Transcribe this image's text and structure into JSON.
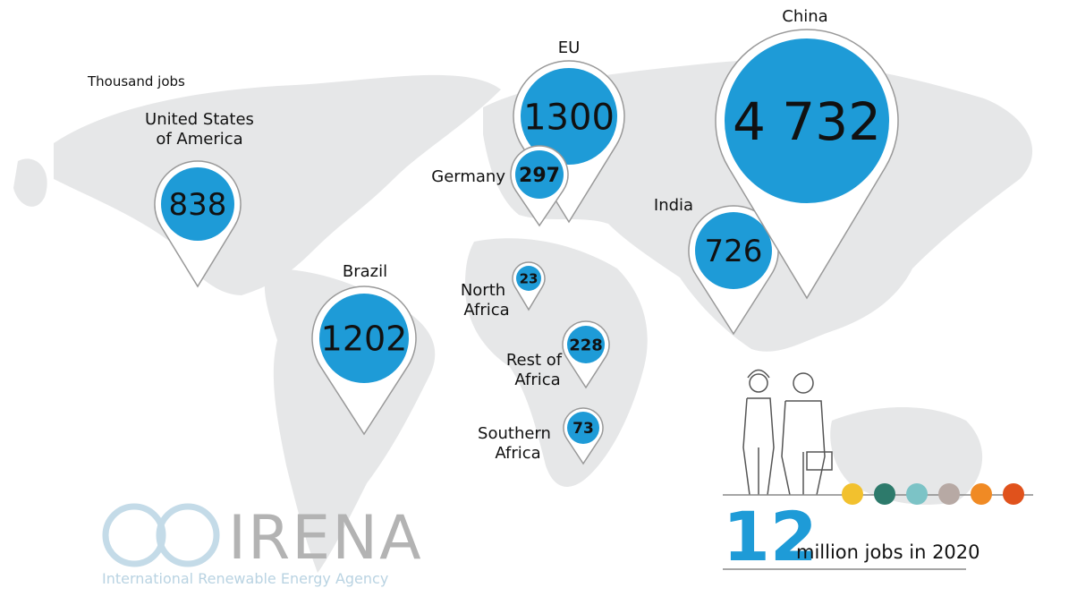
{
  "unit_label": "Thousand jobs",
  "regions": [
    {
      "name": [
        "United States",
        "of America"
      ],
      "value": "838"
    },
    {
      "name": [
        "Brazil"
      ],
      "value": "1202"
    },
    {
      "name": [
        "EU"
      ],
      "value": "1300"
    },
    {
      "name": [
        "Germany"
      ],
      "value": "297"
    },
    {
      "name": [
        "North",
        "Africa"
      ],
      "value": "23"
    },
    {
      "name": [
        "Rest of",
        "Africa"
      ],
      "value": "228"
    },
    {
      "name": [
        "Southern",
        "Africa"
      ],
      "value": "73"
    },
    {
      "name": [
        "India"
      ],
      "value": "726"
    },
    {
      "name": [
        "China"
      ],
      "value": "4 732"
    }
  ],
  "total": {
    "value": "12",
    "label": "million jobs in 2020"
  },
  "logo": {
    "name": "IRENA",
    "full_name": "International Renewable Energy Agency"
  }
}
